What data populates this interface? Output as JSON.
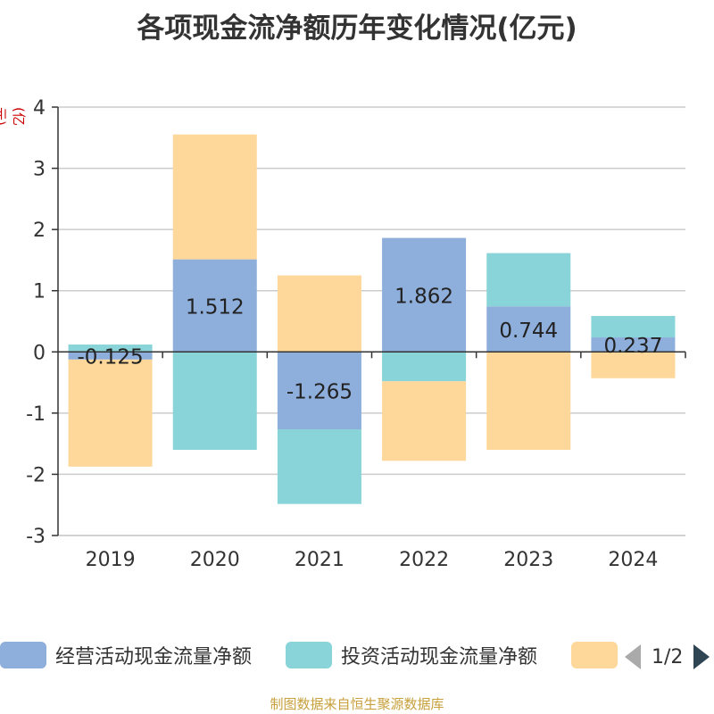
{
  "chart_data": {
    "type": "bar",
    "stacked": true,
    "title": "各项现金流净额历年变化情况(亿元)",
    "ylabel": "(亿元)",
    "ylim": [
      -3,
      4
    ],
    "yticks": [
      4,
      3,
      2,
      1,
      0,
      -1,
      -2,
      -3
    ],
    "categories": [
      "2019",
      "2020",
      "2021",
      "2022",
      "2023",
      "2024"
    ],
    "series": [
      {
        "name": "经营活动现金流量净额",
        "color": "#8eaedb",
        "values": [
          -0.125,
          1.512,
          -1.265,
          1.862,
          0.744,
          0.237
        ],
        "labels": [
          "-0.125",
          "1.512",
          "-1.265",
          "1.862",
          "0.744",
          "0.237"
        ]
      },
      {
        "name": "投资活动现金流量净额",
        "color": "#88d4d8",
        "values": [
          0.12,
          -1.6,
          -1.22,
          -0.48,
          0.87,
          0.35
        ]
      },
      {
        "name": "",
        "color": "#fdd89a",
        "values": [
          -1.75,
          2.04,
          1.25,
          -1.3,
          -1.6,
          -0.43
        ]
      }
    ],
    "legend_page": "1/2"
  },
  "source_note": "制图数据来自恒生聚源数据库"
}
